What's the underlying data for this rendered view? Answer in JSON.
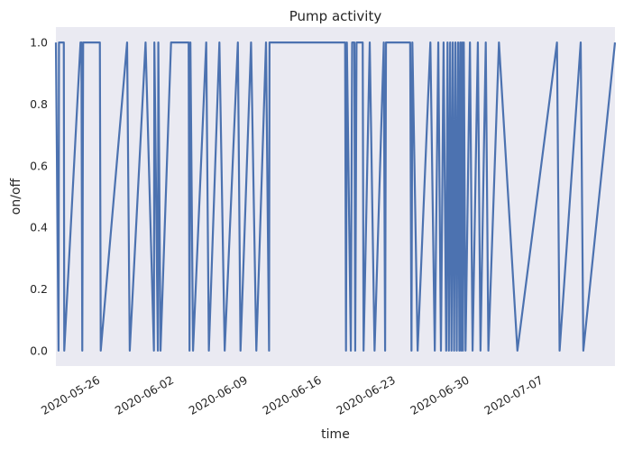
{
  "chart_data": {
    "type": "line",
    "title": "Pump activity",
    "xlabel": "time",
    "ylabel": "on/off",
    "ylim": [
      -0.05,
      1.05
    ],
    "xlim": [
      "2020-05-22",
      "2020-07-14"
    ],
    "yticks": [
      "0.0",
      "0.2",
      "0.4",
      "0.6",
      "0.8",
      "1.0"
    ],
    "xticks": [
      "2020-05-26",
      "2020-06-02",
      "2020-06-09",
      "2020-06-16",
      "2020-06-23",
      "2020-06-30",
      "2020-07-07"
    ],
    "grid": false,
    "background": "#eaeaf2",
    "series": [
      {
        "color": "#4c72b0",
        "points": [
          [
            "2020-05-22T00:00",
            1
          ],
          [
            "2020-05-22T06:00",
            0
          ],
          [
            "2020-05-22T07:00",
            1
          ],
          [
            "2020-05-22T18:00",
            1
          ],
          [
            "2020-05-22T19:00",
            0
          ],
          [
            "2020-05-24T08:00",
            1
          ],
          [
            "2020-05-24T10:00",
            1
          ],
          [
            "2020-05-24T12:00",
            0
          ],
          [
            "2020-05-24T14:00",
            1
          ],
          [
            "2020-05-26T04:00",
            1
          ],
          [
            "2020-05-26T06:00",
            0
          ],
          [
            "2020-05-28T18:00",
            1
          ],
          [
            "2020-05-29T00:00",
            0
          ],
          [
            "2020-05-30T12:00",
            1
          ],
          [
            "2020-05-31T07:00",
            0
          ],
          [
            "2020-05-31T08:00",
            1
          ],
          [
            "2020-05-31T16:00",
            0
          ],
          [
            "2020-05-31T17:00",
            1
          ],
          [
            "2020-05-31T22:00",
            0
          ],
          [
            "2020-06-01T22:00",
            1
          ],
          [
            "2020-06-03T14:00",
            1
          ],
          [
            "2020-06-03T16:00",
            0
          ],
          [
            "2020-06-03T18:00",
            1
          ],
          [
            "2020-06-04T00:00",
            0
          ],
          [
            "2020-06-05T06:00",
            1
          ],
          [
            "2020-06-05T12:00",
            0
          ],
          [
            "2020-06-06T12:00",
            1
          ],
          [
            "2020-06-07T00:00",
            0
          ],
          [
            "2020-06-08T06:00",
            1
          ],
          [
            "2020-06-08T12:00",
            0
          ],
          [
            "2020-06-09T12:00",
            1
          ],
          [
            "2020-06-10T00:00",
            0
          ],
          [
            "2020-06-10T22:00",
            1
          ],
          [
            "2020-06-11T05:00",
            0
          ],
          [
            "2020-06-11T06:00",
            1
          ],
          [
            "2020-06-18T10:00",
            1
          ],
          [
            "2020-06-18T12:00",
            0
          ],
          [
            "2020-06-18T14:00",
            1
          ],
          [
            "2020-06-18T23:00",
            0
          ],
          [
            "2020-06-19T02:00",
            1
          ],
          [
            "2020-06-19T07:00",
            1
          ],
          [
            "2020-06-19T09:00",
            0
          ],
          [
            "2020-06-19T12:00",
            1
          ],
          [
            "2020-06-20T02:00",
            1
          ],
          [
            "2020-06-20T04:00",
            0
          ],
          [
            "2020-06-20T18:00",
            1
          ],
          [
            "2020-06-21T05:00",
            0
          ],
          [
            "2020-06-22T02:00",
            1
          ],
          [
            "2020-06-22T05:00",
            0
          ],
          [
            "2020-06-22T07:00",
            1
          ],
          [
            "2020-06-24T14:00",
            1
          ],
          [
            "2020-06-24T17:00",
            0
          ],
          [
            "2020-06-24T19:00",
            1
          ],
          [
            "2020-06-25T07:00",
            0
          ],
          [
            "2020-06-26T12:00",
            1
          ],
          [
            "2020-06-26T22:00",
            0
          ],
          [
            "2020-06-27T06:00",
            1
          ],
          [
            "2020-06-27T12:00",
            0
          ],
          [
            "2020-06-27T18:00",
            1
          ],
          [
            "2020-06-28T00:00",
            0
          ],
          [
            "2020-06-28T03:00",
            1
          ],
          [
            "2020-06-28T06:00",
            0
          ],
          [
            "2020-06-28T09:00",
            1
          ],
          [
            "2020-06-28T12:00",
            0
          ],
          [
            "2020-06-28T15:00",
            1
          ],
          [
            "2020-06-28T18:00",
            0
          ],
          [
            "2020-06-28T21:00",
            1
          ],
          [
            "2020-06-29T00:00",
            0
          ],
          [
            "2020-06-29T03:00",
            1
          ],
          [
            "2020-06-29T06:00",
            0
          ],
          [
            "2020-06-29T08:00",
            1
          ],
          [
            "2020-06-29T10:00",
            0
          ],
          [
            "2020-06-29T12:00",
            1
          ],
          [
            "2020-06-29T14:00",
            0
          ],
          [
            "2020-06-29T16:00",
            1
          ],
          [
            "2020-06-29T20:00",
            0
          ],
          [
            "2020-06-30T06:00",
            1
          ],
          [
            "2020-06-30T12:00",
            0
          ],
          [
            "2020-07-01T00:00",
            1
          ],
          [
            "2020-07-01T06:00",
            0
          ],
          [
            "2020-07-01T18:00",
            1
          ],
          [
            "2020-07-02T00:00",
            0
          ],
          [
            "2020-07-03T00:00",
            1
          ],
          [
            "2020-07-04T18:00",
            0
          ],
          [
            "2020-07-08T12:00",
            1
          ],
          [
            "2020-07-08T18:00",
            0
          ],
          [
            "2020-07-10T18:00",
            1
          ],
          [
            "2020-07-11T00:00",
            0
          ],
          [
            "2020-07-14T00:00",
            1
          ]
        ]
      }
    ]
  }
}
